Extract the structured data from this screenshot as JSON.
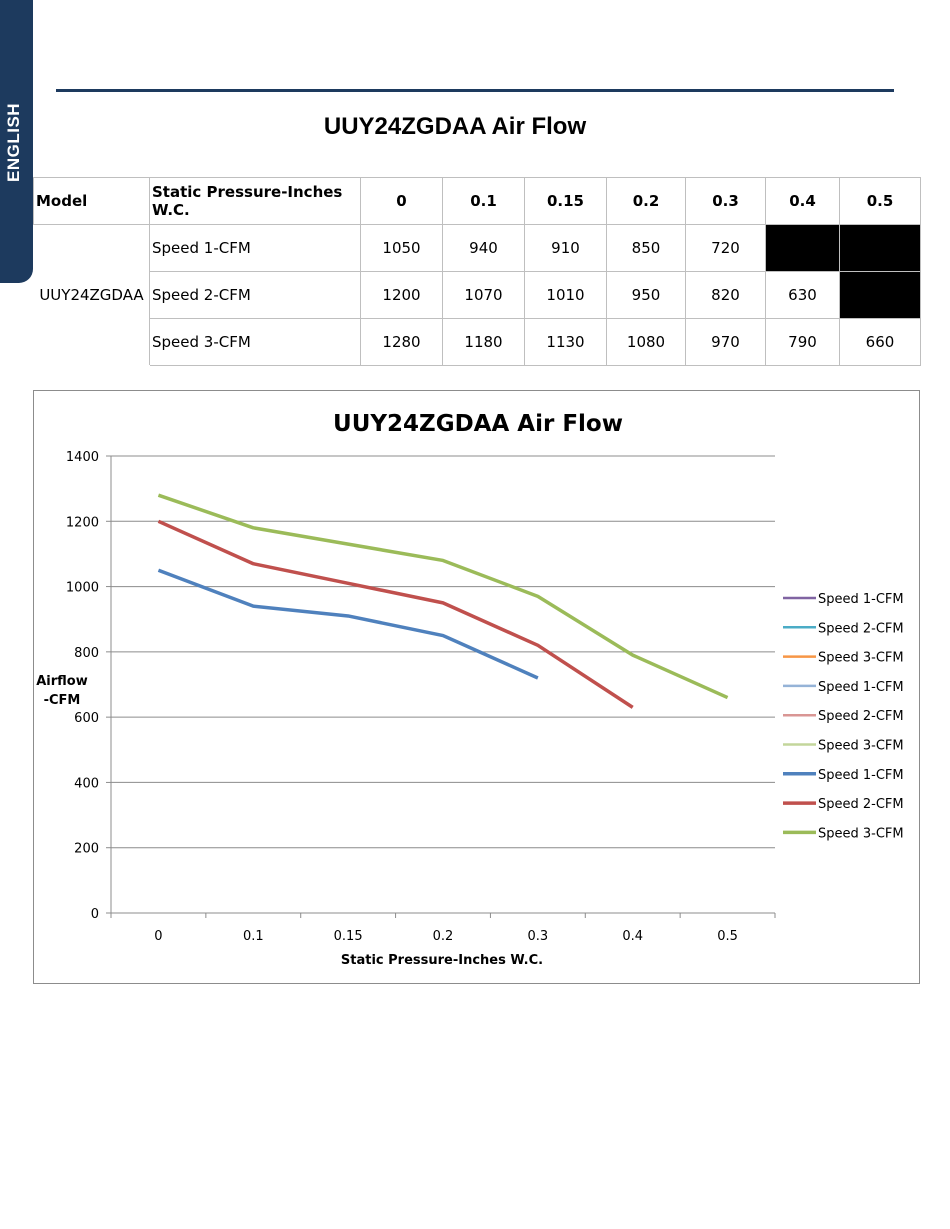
{
  "sidebar": {
    "language": "ENGLISH"
  },
  "page_title": "UUY24ZGDAA Air Flow",
  "table": {
    "header": [
      "Model",
      "Static Pressure-Inches W.C.",
      "0",
      "0.1",
      "0.15",
      "0.2",
      "0.3",
      "0.4",
      "0.5"
    ],
    "model": "UUY24ZGDAA",
    "rows": [
      {
        "label": "Speed 1-CFM",
        "values": [
          "1050",
          "940",
          "910",
          "850",
          "720",
          null,
          null
        ]
      },
      {
        "label": "Speed 2-CFM",
        "values": [
          "1200",
          "1070",
          "1010",
          "950",
          "820",
          "630",
          null
        ]
      },
      {
        "label": "Speed 3-CFM",
        "values": [
          "1280",
          "1180",
          "1130",
          "1080",
          "970",
          "790",
          "660"
        ]
      }
    ]
  },
  "chart_data": {
    "type": "line",
    "title": "UUY24ZGDAA Air Flow",
    "xlabel": "Static Pressure-Inches W.C.",
    "ylabel": "Airflow -CFM",
    "ylabel_lines": [
      "Airflow",
      "-CFM"
    ],
    "categories": [
      "0",
      "0.1",
      "0.15",
      "0.2",
      "0.3",
      "0.4",
      "0.5"
    ],
    "ylim": [
      0,
      1400
    ],
    "yticks": [
      0,
      200,
      400,
      600,
      800,
      1000,
      1200,
      1400
    ],
    "grid": true,
    "legend_position": "right",
    "series": [
      {
        "name": "Speed 1-CFM",
        "color": "#4f81bd",
        "values": [
          1050,
          940,
          910,
          850,
          720,
          null,
          null
        ]
      },
      {
        "name": "Speed 2-CFM",
        "color": "#c0504d",
        "values": [
          1200,
          1070,
          1010,
          950,
          820,
          630,
          null
        ]
      },
      {
        "name": "Speed 3-CFM",
        "color": "#9bbb59",
        "values": [
          1280,
          1180,
          1130,
          1080,
          970,
          790,
          660
        ]
      }
    ],
    "legend": [
      {
        "name": "Speed 1-CFM",
        "color": "#8064a2",
        "thick": false
      },
      {
        "name": "Speed 2-CFM",
        "color": "#4bacc6",
        "thick": false
      },
      {
        "name": "Speed 3-CFM",
        "color": "#f79646",
        "thick": false
      },
      {
        "name": "Speed 1-CFM",
        "color": "#95b3d7",
        "thick": false
      },
      {
        "name": "Speed 2-CFM",
        "color": "#d99694",
        "thick": false
      },
      {
        "name": "Speed 3-CFM",
        "color": "#c3d69b",
        "thick": false
      },
      {
        "name": "Speed 1-CFM",
        "color": "#4f81bd",
        "thick": true
      },
      {
        "name": "Speed 2-CFM",
        "color": "#c0504d",
        "thick": true
      },
      {
        "name": "Speed 3-CFM",
        "color": "#9bbb59",
        "thick": true
      }
    ]
  }
}
